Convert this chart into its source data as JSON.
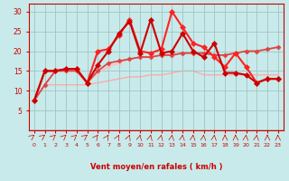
{
  "xlabel": "Vent moyen/en rafales ( km/h )",
  "xlim": [
    -0.5,
    23.5
  ],
  "ylim": [
    0,
    32
  ],
  "yticks": [
    5,
    10,
    15,
    20,
    25,
    30
  ],
  "xticks": [
    0,
    1,
    2,
    3,
    4,
    5,
    6,
    7,
    8,
    9,
    10,
    11,
    12,
    13,
    14,
    15,
    16,
    17,
    18,
    19,
    20,
    21,
    22,
    23
  ],
  "bg_color": "#c8eaea",
  "grid_color": "#a0c4c4",
  "series": [
    {
      "x": [
        0,
        1,
        2,
        3,
        4,
        5,
        6,
        7,
        8,
        9,
        10,
        11,
        12,
        13,
        14,
        15,
        16,
        17,
        18,
        19,
        20,
        21,
        22,
        23
      ],
      "y": [
        7.5,
        11.5,
        11.5,
        11.5,
        11.5,
        11.5,
        12,
        12.5,
        13,
        13.5,
        13.5,
        14,
        14,
        14.5,
        15,
        15,
        14,
        14,
        14,
        14,
        14,
        14,
        14,
        14
      ],
      "color": "#ffaaaa",
      "linewidth": 1.0,
      "marker": null,
      "zorder": 1
    },
    {
      "x": [
        0,
        1,
        2,
        3,
        4,
        5,
        6,
        7,
        8,
        9,
        10,
        11,
        12,
        13,
        14,
        15,
        16,
        17,
        18,
        19,
        20,
        21,
        22,
        23
      ],
      "y": [
        7.5,
        11.5,
        15,
        15,
        15,
        12,
        14.5,
        16,
        17,
        18,
        18.5,
        18.5,
        19,
        19,
        19.5,
        19.5,
        19.5,
        19,
        19,
        19.5,
        20,
        20,
        20.5,
        21
      ],
      "color": "#ffbbbb",
      "linewidth": 1.0,
      "marker": "D",
      "markersize": 2,
      "zorder": 2
    },
    {
      "x": [
        0,
        1,
        2,
        3,
        4,
        5,
        6,
        7,
        8,
        9,
        10,
        11,
        12,
        13,
        14,
        15,
        16,
        17,
        18,
        19,
        20,
        21,
        22,
        23
      ],
      "y": [
        7.5,
        11.5,
        15,
        15,
        15,
        12,
        15,
        17,
        17.5,
        18,
        18.5,
        18.5,
        19,
        19,
        19.5,
        19.5,
        19.5,
        19,
        19,
        19.5,
        20,
        20,
        20.5,
        21
      ],
      "color": "#dd4444",
      "linewidth": 1.3,
      "marker": "D",
      "markersize": 2.5,
      "zorder": 3
    },
    {
      "x": [
        0,
        1,
        2,
        3,
        4,
        5,
        6,
        7,
        8,
        9,
        10,
        11,
        12,
        13,
        14,
        15,
        16,
        17,
        18,
        19,
        20,
        21,
        22,
        23
      ],
      "y": [
        7.5,
        15,
        15,
        15.5,
        15.5,
        12,
        20,
        20.5,
        24,
        28,
        20,
        19.5,
        20.5,
        30,
        26,
        22,
        21,
        18.5,
        16,
        19.5,
        16,
        12,
        13,
        13
      ],
      "color": "#ff2222",
      "linewidth": 1.5,
      "marker": "D",
      "markersize": 3,
      "zorder": 5
    },
    {
      "x": [
        0,
        1,
        2,
        3,
        4,
        5,
        6,
        7,
        8,
        9,
        10,
        11,
        12,
        13,
        14,
        15,
        16,
        17,
        18,
        19,
        20,
        21,
        22,
        23
      ],
      "y": [
        7.5,
        15,
        15,
        15.5,
        15.5,
        12,
        16.5,
        20,
        24.5,
        27.5,
        19.5,
        28,
        19.5,
        20,
        24.5,
        20,
        18.5,
        22,
        14.5,
        14.5,
        14,
        12,
        13,
        13
      ],
      "color": "#cc0000",
      "linewidth": 1.5,
      "marker": "D",
      "markersize": 3,
      "zorder": 6
    }
  ],
  "xlabel_color": "#cc0000",
  "tick_color": "#cc0000",
  "axis_color": "#cc0000",
  "arrow_angles": [
    45,
    45,
    50,
    50,
    50,
    45,
    60,
    65,
    70,
    75,
    80,
    80,
    80,
    85,
    85,
    85,
    85,
    85,
    90,
    90,
    85,
    85,
    90,
    90
  ]
}
